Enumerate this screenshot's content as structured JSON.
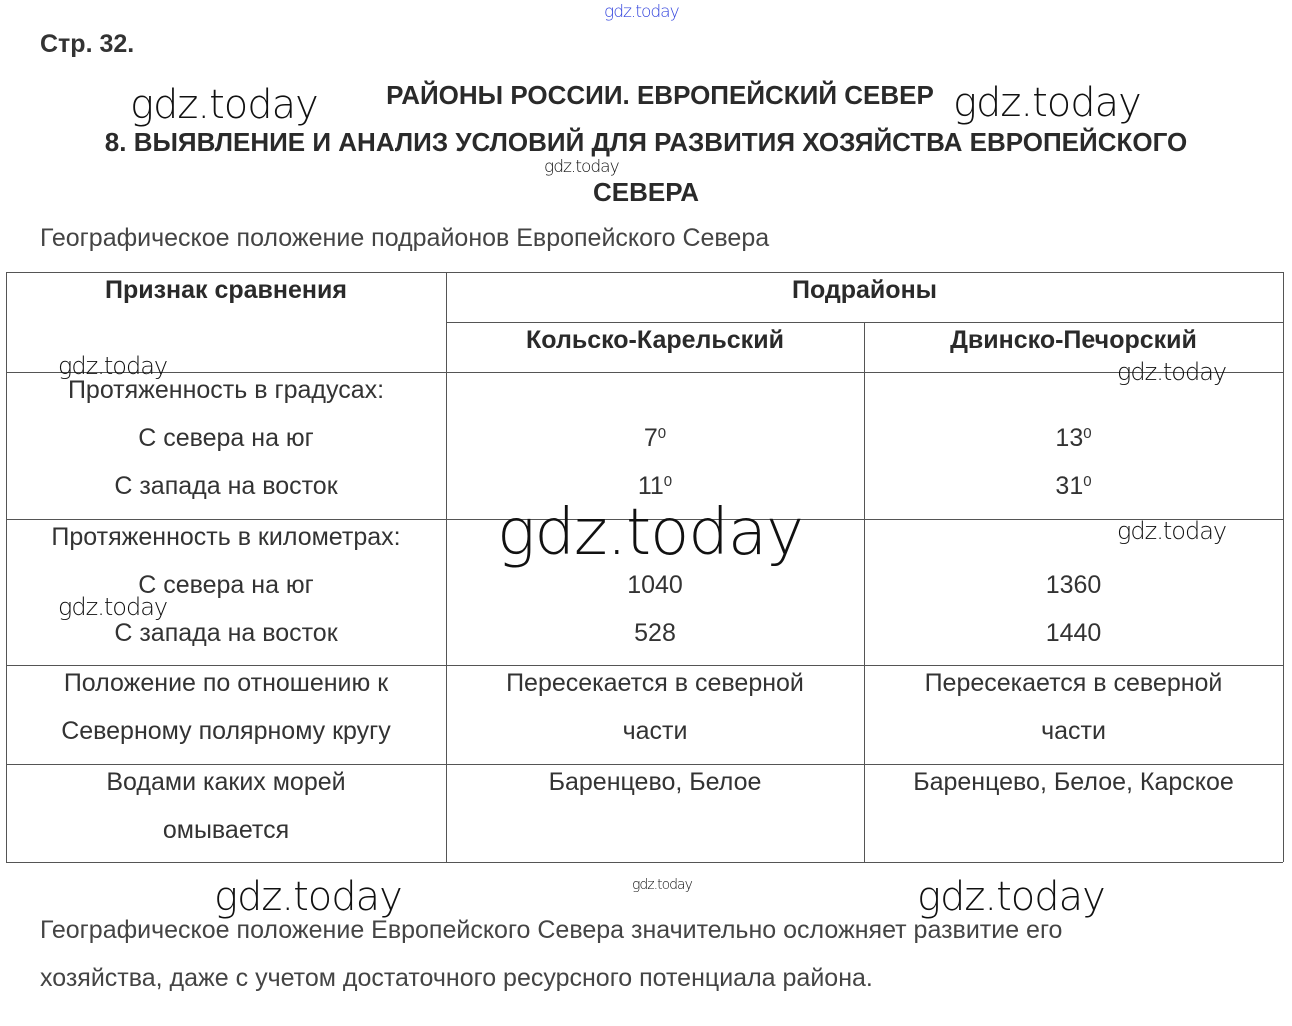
{
  "page_number": "Стр. 32.",
  "section_title": "РАЙОНЫ РОССИИ. ЕВРОПЕЙСКИЙ СЕВЕР",
  "work_title_line1": "8. ВЫЯВЛЕНИЕ И АНАЛИЗ УСЛОВИЙ ДЛЯ РАЗВИТИЯ ХОЗЯЙСТВА ЕВРОПЕЙСКОГО",
  "work_title_line2": "СЕВЕРА",
  "table_caption": "Географическое положение подрайонов Европейского Севера",
  "table": {
    "header_feature": "Признак сравнения",
    "header_subregions": "Подрайоны",
    "col1": "Кольско-Карельский",
    "col2": "Двинско-Печорский",
    "rows": [
      {
        "label": [
          "Протяженность в градусах:",
          "С севера на юг",
          "С запада на восток"
        ],
        "c1": [
          {
            "v": "7",
            "sup": "0"
          },
          {
            "v": "11",
            "sup": "0"
          }
        ],
        "c2": [
          {
            "v": "13",
            "sup": "0"
          },
          {
            "v": "31",
            "sup": "0"
          }
        ]
      },
      {
        "label": [
          "Протяженность в километрах:",
          "С севера на юг",
          "С запада на восток"
        ],
        "c1": [
          "1040",
          "528"
        ],
        "c2": [
          "1360",
          "1440"
        ]
      },
      {
        "label": [
          "Положение по отношению к",
          "Северному полярному кругу"
        ],
        "c1": [
          "Пересекается в северной",
          "части"
        ],
        "c2": [
          "Пересекается в северной",
          "части"
        ]
      },
      {
        "label": [
          "Водами каких морей",
          "омывается"
        ],
        "c1": [
          "Баренцево, Белое"
        ],
        "c2": [
          "Баренцево, Белое, Карское"
        ]
      }
    ]
  },
  "conclusion_line1": "Географическое положение Европейского Севера значительно осложняет развитие его",
  "conclusion_line2": "хозяйства, даже с учетом достаточного ресурсного потенциала района.",
  "watermark": "gdz.today",
  "colors": {
    "watermark_top": "#3344dd",
    "text": "#333333",
    "border": "#555555"
  }
}
